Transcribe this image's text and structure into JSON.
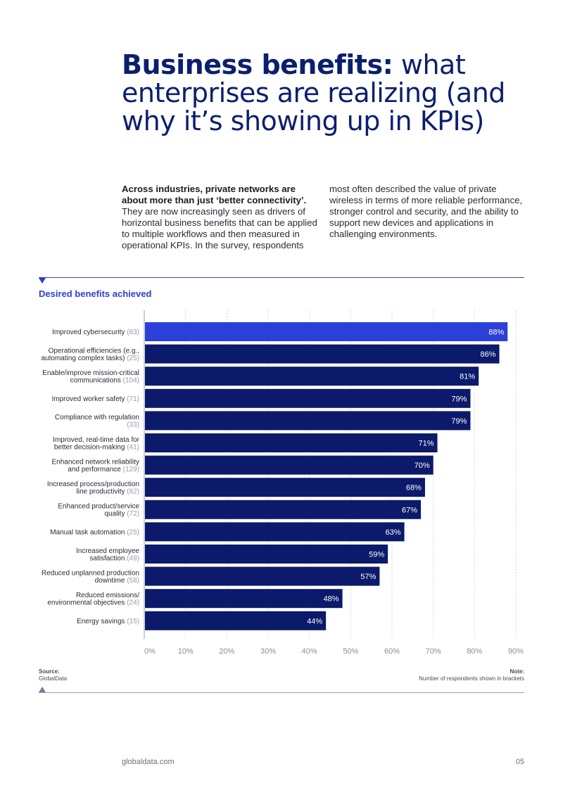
{
  "title": {
    "bold": "Business benefits:",
    "rest": " what enterprises are realizing (and why it’s showing up in KPIs)"
  },
  "intro": {
    "lead": "Across industries, private networks are about more than just ‘better connectivity’.",
    "body1": " They are now increasingly seen as drivers of horizontal business benefits that can be applied to multiple workflows and then measured in operational KPIs. In the survey, respondents",
    "body2": "most often described the value of private wireless in terms of more reliable performance, stronger control and security, and the ability to support new devices and applications in challenging environments."
  },
  "chart_heading": "Desired benefits achieved",
  "chart_data": {
    "type": "bar",
    "orientation": "horizontal",
    "title": "Desired benefits achieved",
    "categories": [
      "Improved cybersecurity",
      "Operational efficiencies (e.g., automating complex tasks)",
      "Enable/improve mission-critical communications",
      "Improved worker safety",
      "Compliance with regulation",
      "Improved, real-time data for better decision-making",
      "Enhanced network reliability and performance",
      "Increased process/production line productivity",
      "Enhanced product/service quality",
      "Manual task automation",
      "Increased employee satisfaction",
      "Reduced unplanned production downtime",
      "Reduced emissions/ environmental objectives",
      "Energy savings"
    ],
    "label_lines": [
      [
        [
          "Improved cybersecurity",
          "(83)"
        ]
      ],
      [
        [
          "Operational efficiencies (e.g.,",
          ""
        ],
        [
          "automating complex tasks)",
          "(25)"
        ]
      ],
      [
        [
          "Enable/improve mission-critical",
          ""
        ],
        [
          "communications",
          "(104)"
        ]
      ],
      [
        [
          "Improved worker safety",
          "(71)"
        ]
      ],
      [
        [
          "Compliance with regulation",
          ""
        ],
        [
          "",
          "(33)"
        ]
      ],
      [
        [
          "Improved, real-time data for",
          ""
        ],
        [
          "better decision-making",
          "(41)"
        ]
      ],
      [
        [
          "Enhanced network reliability",
          ""
        ],
        [
          "and performance",
          "(129)"
        ]
      ],
      [
        [
          "Increased process/production",
          ""
        ],
        [
          "line productivity",
          "(82)"
        ]
      ],
      [
        [
          "Enhanced product/service",
          ""
        ],
        [
          "quality",
          "(72)"
        ]
      ],
      [
        [
          "Manual task automation",
          "(25)"
        ]
      ],
      [
        [
          "Increased employee",
          ""
        ],
        [
          "satisfaction",
          "(49)"
        ]
      ],
      [
        [
          "Reduced unplanned production",
          ""
        ],
        [
          "downtime",
          "(58)"
        ]
      ],
      [
        [
          "Reduced emissions/",
          ""
        ],
        [
          "environmental objectives",
          "(24)"
        ]
      ],
      [
        [
          "Energy savings",
          "(15)"
        ]
      ]
    ],
    "respondents": [
      83,
      25,
      104,
      71,
      33,
      41,
      129,
      82,
      72,
      25,
      49,
      58,
      24,
      15
    ],
    "values": [
      88,
      86,
      81,
      79,
      79,
      71,
      70,
      68,
      67,
      63,
      59,
      57,
      48,
      44
    ],
    "value_labels": [
      "88%",
      "86%",
      "81%",
      "79%",
      "79%",
      "71%",
      "70%",
      "68%",
      "67%",
      "63%",
      "59%",
      "57%",
      "48%",
      "44%"
    ],
    "xlim": [
      0,
      90
    ],
    "xticks": [
      "0%",
      "10%",
      "20%",
      "30%",
      "40%",
      "50%",
      "60%",
      "70%",
      "80%",
      "90%"
    ],
    "grid": true,
    "colors": {
      "highlight": "#2b3fd9",
      "bar": "#0c1a6b",
      "count": "#9a9aa8",
      "label": "#2a2a36",
      "tick": "#8a8a99",
      "grid": "#d4d6e2"
    }
  },
  "source": {
    "label": "Source:",
    "text": "GlobalData"
  },
  "note": {
    "label": "Note:",
    "text": "Number of respondents shown in brackets"
  },
  "footer": {
    "site": "globaldata.com",
    "page": "05"
  }
}
